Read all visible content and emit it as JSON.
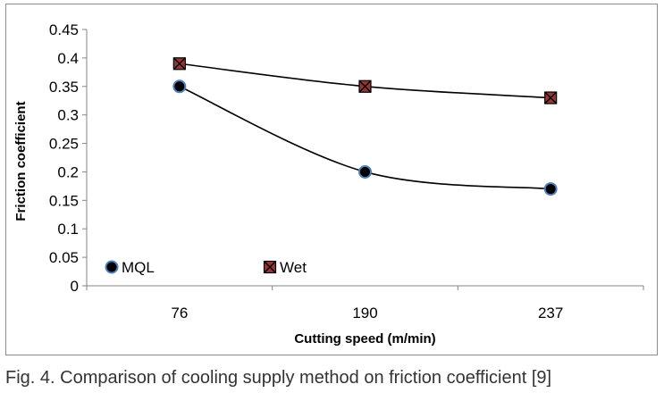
{
  "caption": "Fig. 4. Comparison of cooling supply method on friction coefficient [9]",
  "chart_data": {
    "type": "line",
    "title": "",
    "xlabel": "Cutting speed (m/min)",
    "ylabel": "Friction coefficient",
    "categories": [
      "76",
      "190",
      "237"
    ],
    "ylim": [
      0,
      0.45
    ],
    "yticks": [
      "0",
      "0.05",
      "0.1",
      "0.15",
      "0.2",
      "0.25",
      "0.3",
      "0.35",
      "0.4",
      "0.45"
    ],
    "grid": false,
    "legend_position": "bottom-left, inside plot",
    "smoothed_lines": true,
    "series": [
      {
        "name": "MQL",
        "values": [
          0.35,
          0.2,
          0.17
        ],
        "marker": "circle",
        "marker_color": "#000000",
        "marker_edge_color": "#4f81bd",
        "line_color": "#000000"
      },
      {
        "name": "Wet",
        "values": [
          0.39,
          0.35,
          0.33
        ],
        "marker": "square-x",
        "marker_color": "#953735",
        "marker_edge_color": "#000000",
        "line_color": "#000000"
      }
    ]
  }
}
